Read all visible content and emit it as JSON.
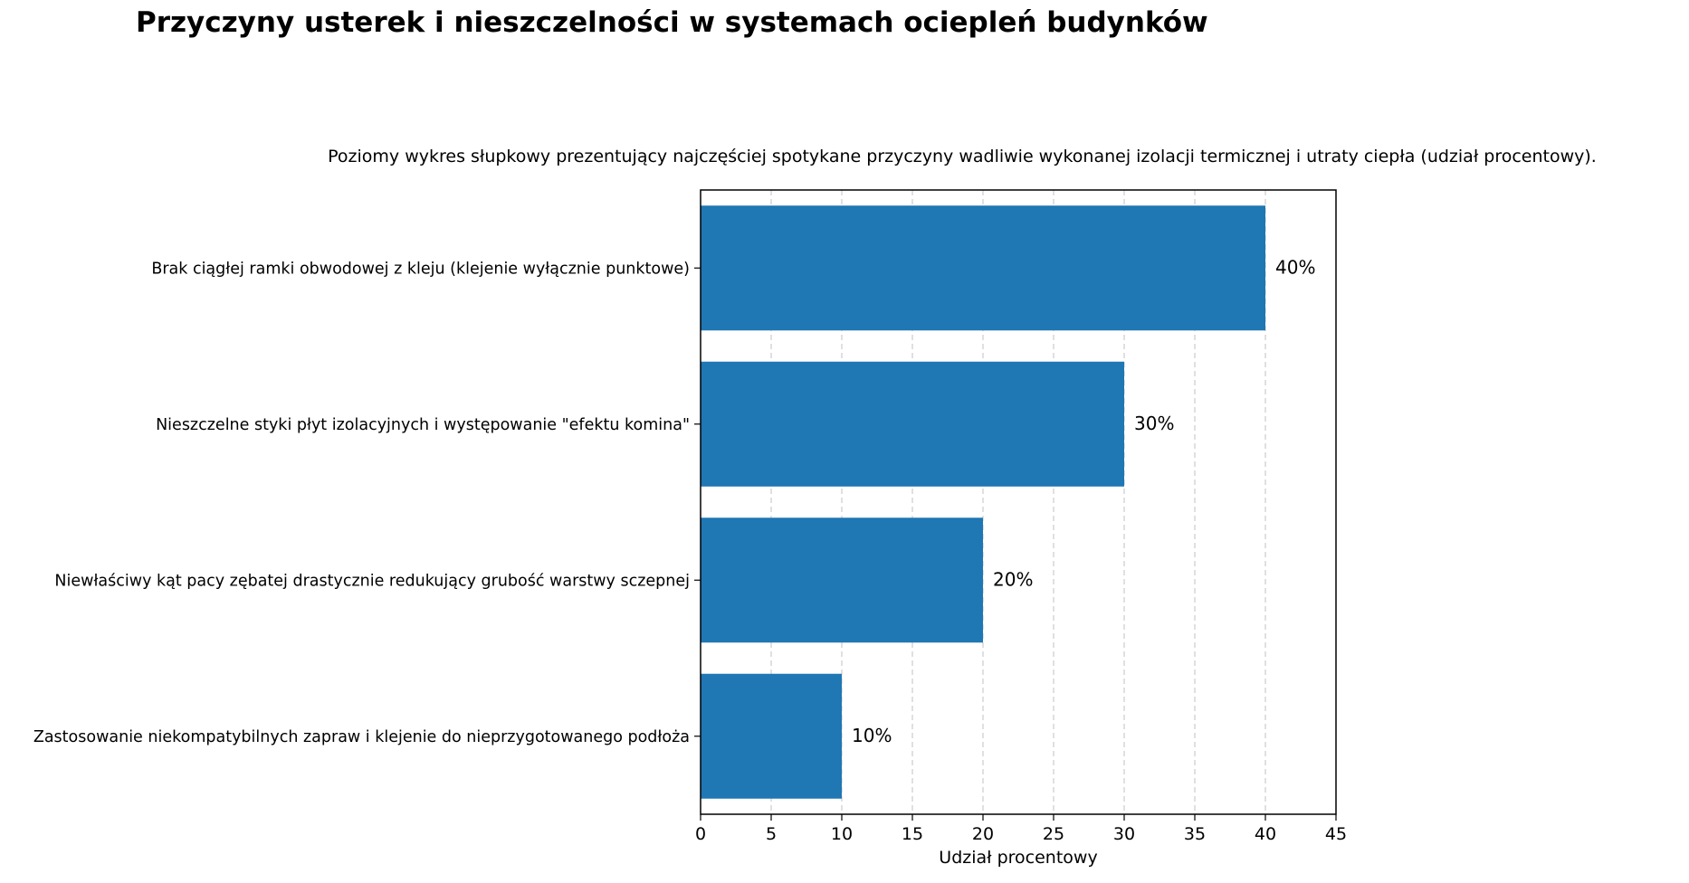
{
  "chart_data": {
    "type": "bar",
    "orientation": "horizontal",
    "title": "Przyczyny usterek i nieszczelności w systemach ociepleń budynków",
    "subtitle": "Poziomy wykres słupkowy prezentujący najczęściej spotykane przyczyny wadliwie wykonanej izolacji termicznej i utraty ciepła (udział procentowy).",
    "xlabel": "Udział procentowy",
    "ylabel": "",
    "categories": [
      "Brak ciągłej ramki obwodowej z kleju (klejenie wyłącznie punktowe)",
      "Nieszczelne styki płyt izolacyjnych i występowanie \"efektu komina\"",
      "Niewłaściwy kąt pacy zębatej drastycznie redukujący grubość warstwy sczepnej",
      "Zastosowanie niekompatybilnych zapraw i klejenie do nieprzygotowanego podłoża"
    ],
    "values": [
      40,
      30,
      20,
      10
    ],
    "data_labels": [
      "40%",
      "30%",
      "20%",
      "10%"
    ],
    "xlim": [
      0,
      45
    ],
    "xticks": [
      0,
      5,
      10,
      15,
      20,
      25,
      30,
      35,
      40,
      45
    ],
    "grid": {
      "x": true,
      "y": false,
      "style": "dashed"
    },
    "colors": {
      "bar": "#1f77b4",
      "grid": "#cccccc",
      "axis": "#000000"
    }
  }
}
